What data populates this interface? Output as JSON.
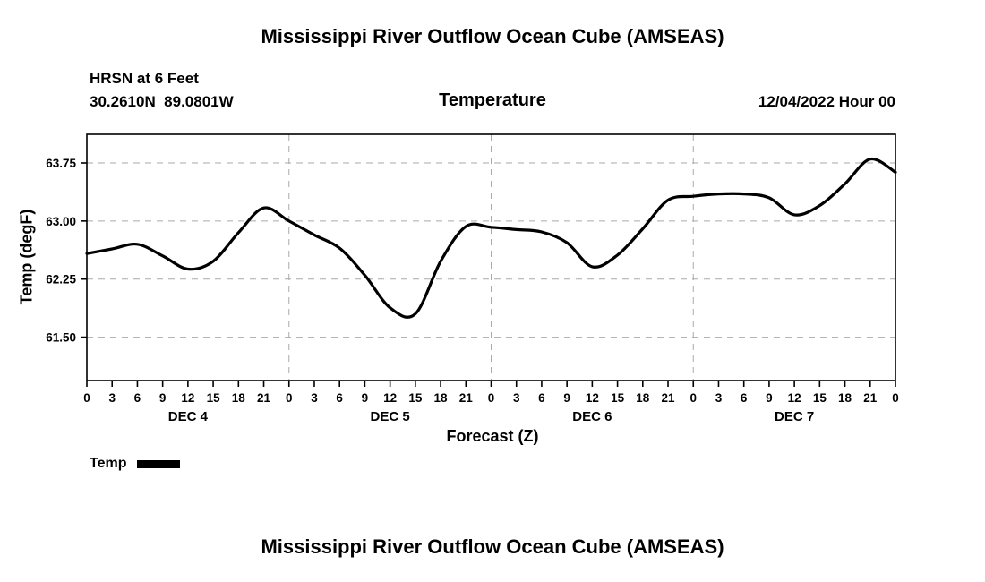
{
  "page": {
    "top_title": "Mississippi River Outflow Ocean Cube (AMSEAS)",
    "bottom_title": "Mississippi River Outflow Ocean Cube (AMSEAS)"
  },
  "header": {
    "station": "HRSN at 6 Feet",
    "coordinates": "30.2610N  89.0801W",
    "variable": "Temperature",
    "run_datetime": "12/04/2022 Hour 00"
  },
  "legend": {
    "label": "Temp"
  },
  "chart_data": {
    "type": "line",
    "title": "Temperature",
    "xlabel": "Forecast (Z)",
    "ylabel": "Temp (degF)",
    "ylim": [
      60.94,
      64.12
    ],
    "yticks": [
      61.5,
      62.25,
      63.0,
      63.75
    ],
    "ytick_labels": [
      "61.50",
      "62.25",
      "63.00",
      "63.75"
    ],
    "x_total_hours": 96,
    "x_tick_step_hours": 3,
    "xtick_label_mod": 24,
    "day_labels": [
      "DEC 4",
      "DEC 5",
      "DEC 6",
      "DEC 7"
    ],
    "day_label_hours": [
      12,
      36,
      60,
      84
    ],
    "day_boundary_hours": [
      24,
      48,
      72
    ],
    "grid": true,
    "grid_color": "#aaaaaa",
    "line_color": "#000000",
    "series": [
      {
        "name": "Temp",
        "x": [
          0,
          3,
          6,
          9,
          12,
          15,
          18,
          21,
          24,
          27,
          30,
          33,
          36,
          39,
          42,
          45,
          48,
          51,
          54,
          57,
          60,
          63,
          66,
          69,
          72,
          75,
          78,
          81,
          84,
          87,
          90,
          93,
          96
        ],
        "values": [
          62.58,
          62.64,
          62.7,
          62.55,
          62.38,
          62.48,
          62.85,
          63.17,
          63.0,
          62.82,
          62.65,
          62.3,
          61.88,
          61.8,
          62.48,
          62.93,
          62.92,
          62.89,
          62.86,
          62.72,
          62.41,
          62.56,
          62.9,
          63.27,
          63.32,
          63.35,
          63.35,
          63.3,
          63.08,
          63.2,
          63.48,
          63.8,
          63.63
        ]
      }
    ]
  }
}
